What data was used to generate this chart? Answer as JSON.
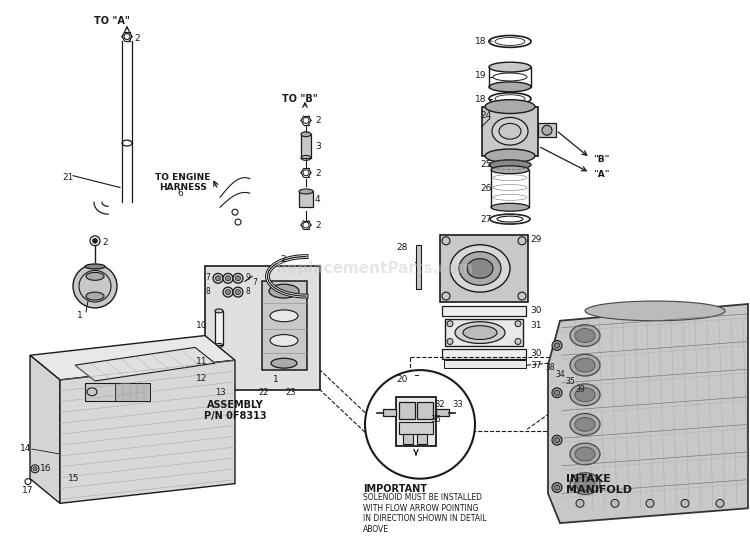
{
  "background_color": "#ffffff",
  "watermark_text": "ReplacementParts.com",
  "watermark_color": "#c8c8c8",
  "watermark_alpha": 0.45,
  "watermark_fontsize": 11,
  "labels": {
    "to_a": "TO \"A\"",
    "to_b": "TO \"B\"",
    "to_engine_harness": "TO ENGINE\nHARNESS",
    "assembly": "ASSEMBLY\nP/N 0F8313",
    "important_title": "IMPORTANT",
    "important_body": "SOLENOID MUST BE INSTALLED\nWITH FLOW ARROW POINTING\nIN DIRECTION SHOWN IN DETAIL\nABOVE",
    "intake_manifold": "INTAKE\nMANIFOLD",
    "label_a": "\"A\"",
    "label_b": "\"B\""
  },
  "line_color": "#1a1a1a",
  "gray_fill": "#c8c8c8",
  "dark_fill": "#888888",
  "mid_fill": "#aaaaaa",
  "panel_fill": "#e0e0e0",
  "frame_fill": "#d4d4d4"
}
